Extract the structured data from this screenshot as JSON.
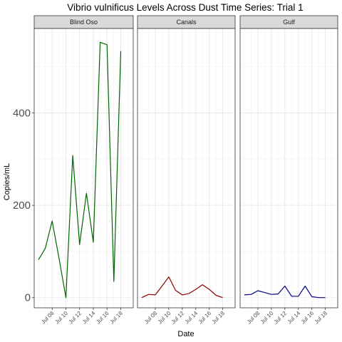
{
  "chart_data": {
    "type": "line",
    "title": "Vibrio vulnificus Levels Across Dust Time Series: Trial 1",
    "xlabel": "Date",
    "ylabel": "Copies/mL",
    "ylim": [
      -22,
      583
    ],
    "y_ticks": [
      0,
      200,
      400
    ],
    "x_range": [
      "2022-07-06",
      "2022-07-19.2"
    ],
    "x_ticks": [
      {
        "date": "2022-07-08",
        "label": "Jul 08"
      },
      {
        "date": "2022-07-10",
        "label": "Jul 10"
      },
      {
        "date": "2022-07-12",
        "label": "Jul 12"
      },
      {
        "date": "2022-07-14",
        "label": "Jul 14"
      },
      {
        "date": "2022-07-16",
        "label": "Jul 16"
      },
      {
        "date": "2022-07-18",
        "label": "Jul 18"
      }
    ],
    "grid": true,
    "legend": "none",
    "facets": [
      {
        "label": "Blind Oso",
        "color": "#006400",
        "points": [
          [
            "2022-07-06",
            82
          ],
          [
            "2022-07-07",
            107
          ],
          [
            "2022-07-08",
            166
          ],
          [
            "2022-07-09",
            85
          ],
          [
            "2022-07-10",
            0
          ],
          [
            "2022-07-11",
            308
          ],
          [
            "2022-07-12",
            115
          ],
          [
            "2022-07-13",
            226
          ],
          [
            "2022-07-14",
            120
          ],
          [
            "2022-07-15",
            553
          ],
          [
            "2022-07-16",
            548
          ],
          [
            "2022-07-17",
            35
          ],
          [
            "2022-07-18",
            534
          ]
        ]
      },
      {
        "label": "Canals",
        "color": "#8B0000",
        "points": [
          [
            "2022-07-06",
            0
          ],
          [
            "2022-07-07",
            7
          ],
          [
            "2022-07-08",
            6
          ],
          [
            "2022-07-09",
            25
          ],
          [
            "2022-07-10",
            45
          ],
          [
            "2022-07-11",
            16
          ],
          [
            "2022-07-12",
            6
          ],
          [
            "2022-07-13",
            9
          ],
          [
            "2022-07-14",
            18
          ],
          [
            "2022-07-15",
            28
          ],
          [
            "2022-07-16",
            18
          ],
          [
            "2022-07-17",
            5
          ],
          [
            "2022-07-18",
            0
          ]
        ]
      },
      {
        "label": "Gulf",
        "color": "#00008B",
        "points": [
          [
            "2022-07-06",
            6
          ],
          [
            "2022-07-07",
            7
          ],
          [
            "2022-07-08",
            15
          ],
          [
            "2022-07-09",
            11
          ],
          [
            "2022-07-10",
            7
          ],
          [
            "2022-07-11",
            8
          ],
          [
            "2022-07-12",
            25
          ],
          [
            "2022-07-13",
            3
          ],
          [
            "2022-07-14",
            3
          ],
          [
            "2022-07-15",
            25
          ],
          [
            "2022-07-16",
            2
          ],
          [
            "2022-07-17",
            0
          ],
          [
            "2022-07-18",
            0
          ]
        ]
      }
    ]
  }
}
